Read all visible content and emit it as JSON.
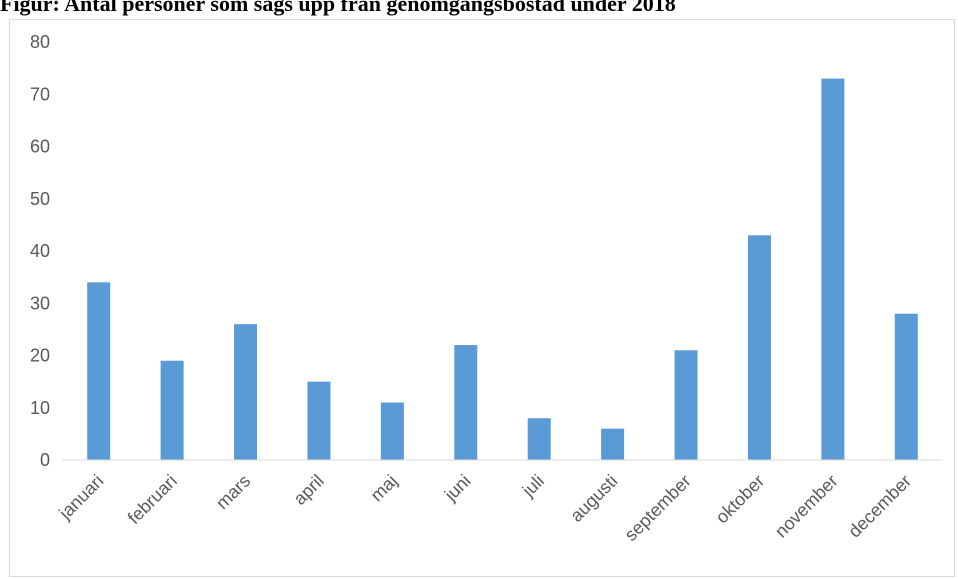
{
  "title": "Figur: Antal personer som sägs upp från genomgångsbostad under 2018",
  "chart_data": {
    "type": "bar",
    "title": "Figur: Antal personer som sägs upp från genomgångsbostad under 2018",
    "categories": [
      "januari",
      "februari",
      "mars",
      "april",
      "maj",
      "juni",
      "juli",
      "augusti",
      "september",
      "oktober",
      "november",
      "december"
    ],
    "series": [
      {
        "values": [
          34,
          19,
          26,
          15,
          11,
          22,
          8,
          6,
          21,
          43,
          73,
          28
        ]
      }
    ],
    "ylim": [
      0,
      80
    ],
    "yticks": [
      0,
      10,
      20,
      30,
      40,
      50,
      60,
      70,
      80
    ],
    "grid": false,
    "bar_color": "#5b9bd5",
    "xlabel": "",
    "ylabel": ""
  }
}
